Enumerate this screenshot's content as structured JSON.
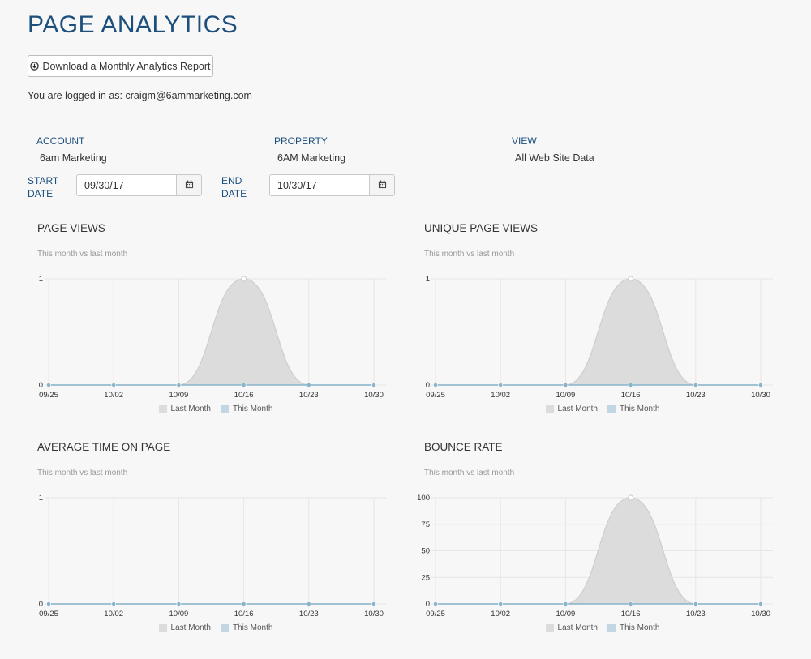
{
  "page": {
    "title": "PAGE ANALYTICS",
    "download_label": "Download a Monthly Analytics Report",
    "download_icon": "download-circle-icon",
    "login_text": "You are logged in as: craigm@6ammarketing.com"
  },
  "selectors": {
    "account_label": "ACCOUNT",
    "account_value": "6am Marketing",
    "property_label": "PROPERTY",
    "property_value": "6AM Marketing",
    "view_label": "VIEW",
    "view_value": "All Web Site Data",
    "start_label_1": "START",
    "start_label_2": "DATE",
    "start_value": "09/30/17",
    "end_label_1": "END",
    "end_label_2": "DATE",
    "end_value": "10/30/17",
    "calendar_icon": "calendar-icon"
  },
  "colors": {
    "title": "#1d4f7c",
    "last_month_fill": "#dcdcdc",
    "last_month_line": "#cfcfcf",
    "this_month_line": "#8ab4cc",
    "this_month_swatch": "#c2d7e3",
    "grid": "#e6e6e6"
  },
  "chart_data": [
    {
      "type": "area",
      "title": "PAGE VIEWS",
      "subtitle": "This month vs last month",
      "categories": [
        "09/25",
        "10/02",
        "10/09",
        "10/16",
        "10/23",
        "10/30"
      ],
      "ylim": [
        0,
        1
      ],
      "yticks": [
        "0",
        "1"
      ],
      "series": [
        {
          "name": "Last Month",
          "values": [
            0,
            0,
            0,
            1,
            0,
            0
          ]
        },
        {
          "name": "This Month",
          "values": [
            0,
            0,
            0,
            0,
            0,
            0
          ]
        }
      ],
      "legend": "bottom"
    },
    {
      "type": "area",
      "title": "UNIQUE PAGE VIEWS",
      "subtitle": "This month vs last month",
      "categories": [
        "09/25",
        "10/02",
        "10/09",
        "10/16",
        "10/23",
        "10/30"
      ],
      "ylim": [
        0,
        1
      ],
      "yticks": [
        "0",
        "1"
      ],
      "series": [
        {
          "name": "Last Month",
          "values": [
            0,
            0,
            0,
            1,
            0,
            0
          ]
        },
        {
          "name": "This Month",
          "values": [
            0,
            0,
            0,
            0,
            0,
            0
          ]
        }
      ],
      "legend": "bottom"
    },
    {
      "type": "area",
      "title": "AVERAGE TIME ON PAGE",
      "subtitle": "This month vs last month",
      "categories": [
        "09/25",
        "10/02",
        "10/09",
        "10/16",
        "10/23",
        "10/30"
      ],
      "ylim": [
        0,
        1
      ],
      "yticks": [
        "0",
        "1"
      ],
      "series": [
        {
          "name": "Last Month",
          "values": [
            0,
            0,
            0,
            0,
            0,
            0
          ]
        },
        {
          "name": "This Month",
          "values": [
            0,
            0,
            0,
            0,
            0,
            0
          ]
        }
      ],
      "legend": "bottom"
    },
    {
      "type": "area",
      "title": "BOUNCE RATE",
      "subtitle": "This month vs last month",
      "categories": [
        "09/25",
        "10/02",
        "10/09",
        "10/16",
        "10/23",
        "10/30"
      ],
      "ylim": [
        0,
        100
      ],
      "yticks": [
        "0",
        "25",
        "50",
        "75",
        "100"
      ],
      "series": [
        {
          "name": "Last Month",
          "values": [
            0,
            0,
            0,
            100,
            0,
            0
          ]
        },
        {
          "name": "This Month",
          "values": [
            0,
            0,
            0,
            0,
            0,
            0
          ]
        }
      ],
      "legend": "bottom"
    }
  ]
}
